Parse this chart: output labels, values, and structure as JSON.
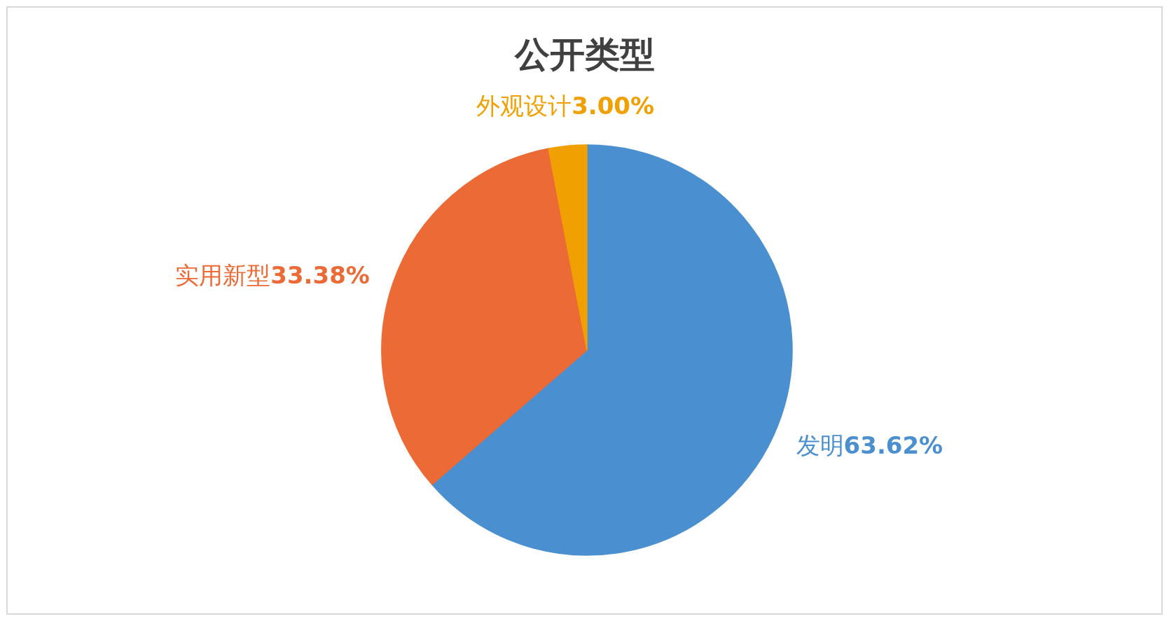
{
  "chart_data": {
    "type": "pie",
    "title": "公开类型",
    "categories": [
      "发明",
      "实用新型",
      "外观设计"
    ],
    "values": [
      63.62,
      33.38,
      3.0
    ],
    "value_labels": [
      "63.62%",
      "33.38%",
      "3.00%"
    ],
    "colors": [
      "#4a8fcf",
      "#ec6a35",
      "#f0a000"
    ]
  }
}
